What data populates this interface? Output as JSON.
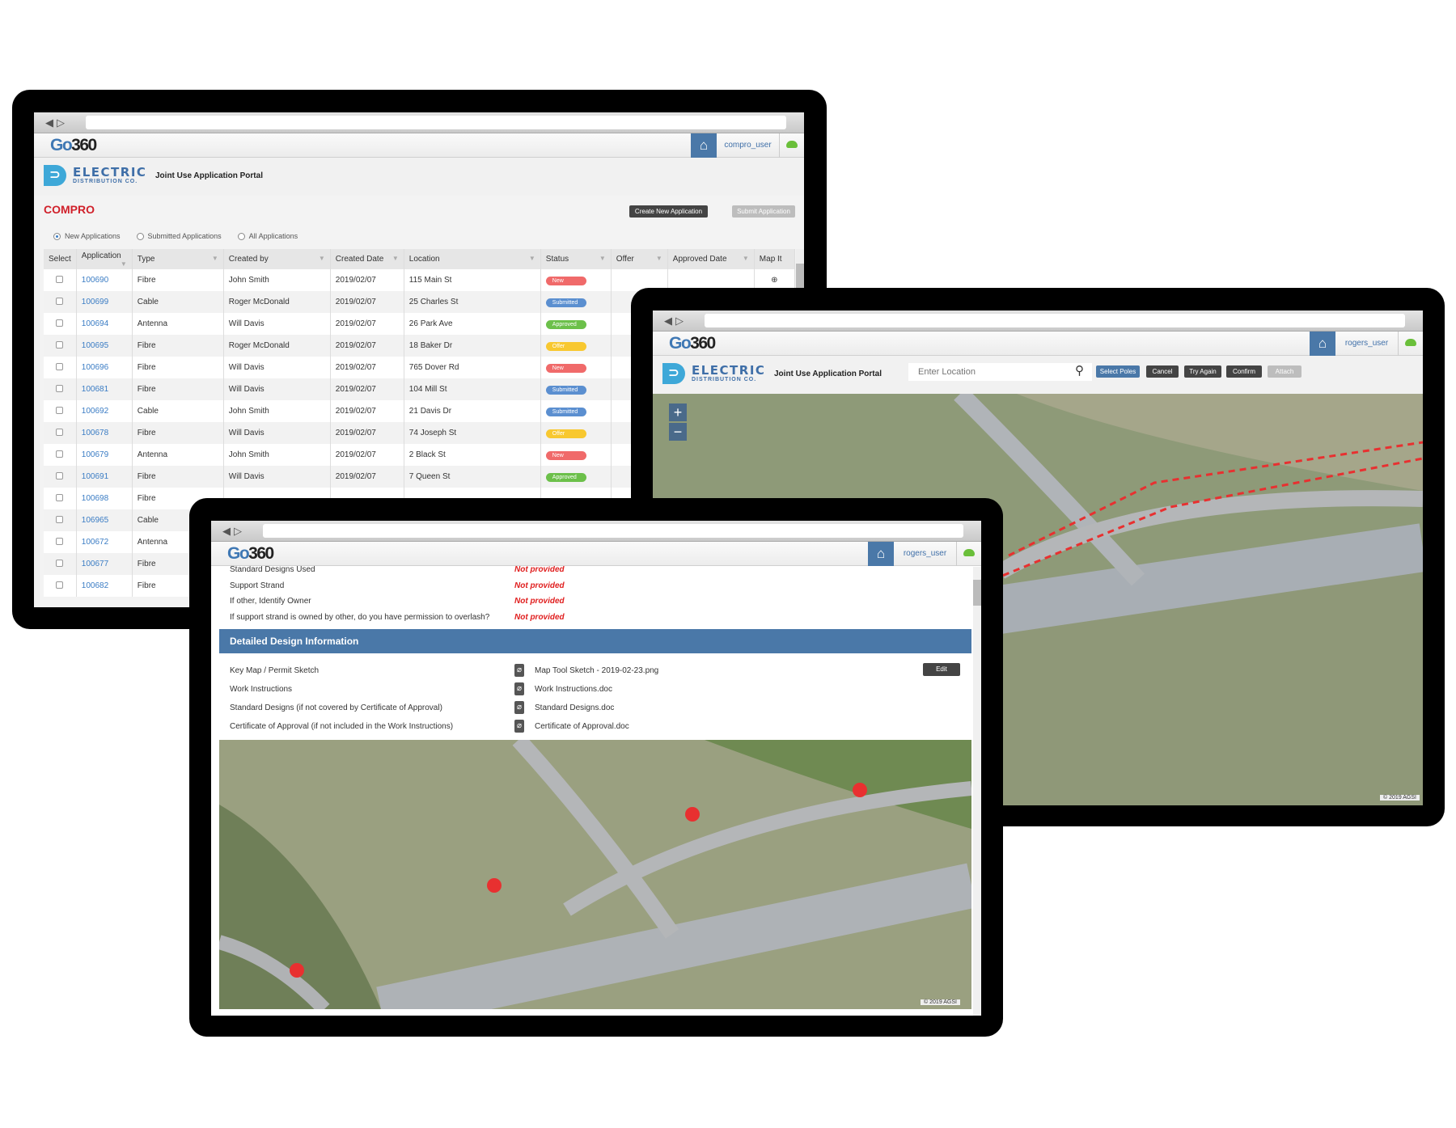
{
  "colors": {
    "brand_blue": "#4a78a8",
    "new": "#f06a6a",
    "submitted": "#5b8fd0",
    "approved": "#6cc04a",
    "offer": "#f8c830",
    "error_text": "#e02020"
  },
  "app": {
    "logo_go": "Go",
    "logo_360": "360",
    "company": "ELECTRIC",
    "company_sub": "DISTRIBUTION CO.",
    "portal_title": "Joint Use Application Portal"
  },
  "screen1": {
    "user": "compro_user",
    "compro_logo": "COMPRO",
    "create_button": "Create New Application",
    "submit_button": "Submit Application",
    "filters": [
      {
        "label": "New Applications",
        "selected": true
      },
      {
        "label": "Submitted Applications",
        "selected": false
      },
      {
        "label": "All Applications",
        "selected": false
      }
    ],
    "columns": [
      "Select",
      "Application",
      "Type",
      "Created by",
      "Created Date",
      "Location",
      "Status",
      "Offer",
      "Approved Date",
      "Map It"
    ],
    "rows": [
      {
        "id": "100690",
        "type": "Fibre",
        "by": "John Smith",
        "date": "2019/02/07",
        "loc": "115 Main St",
        "status": "New"
      },
      {
        "id": "100699",
        "type": "Cable",
        "by": "Roger McDonald",
        "date": "2019/02/07",
        "loc": "25 Charles St",
        "status": "Submitted"
      },
      {
        "id": "100694",
        "type": "Antenna",
        "by": "Will Davis",
        "date": "2019/02/07",
        "loc": "26 Park Ave",
        "status": "Approved"
      },
      {
        "id": "100695",
        "type": "Fibre",
        "by": "Roger McDonald",
        "date": "2019/02/07",
        "loc": "18 Baker Dr",
        "status": "Offer"
      },
      {
        "id": "100696",
        "type": "Fibre",
        "by": "Will Davis",
        "date": "2019/02/07",
        "loc": "765 Dover Rd",
        "status": "New"
      },
      {
        "id": "100681",
        "type": "Fibre",
        "by": "Will Davis",
        "date": "2019/02/07",
        "loc": "104 Mill St",
        "status": "Submitted"
      },
      {
        "id": "100692",
        "type": "Cable",
        "by": "John Smith",
        "date": "2019/02/07",
        "loc": "21 Davis Dr",
        "status": "Submitted"
      },
      {
        "id": "100678",
        "type": "Fibre",
        "by": "Will Davis",
        "date": "2019/02/07",
        "loc": "74 Joseph St",
        "status": "Offer"
      },
      {
        "id": "100679",
        "type": "Antenna",
        "by": "John Smith",
        "date": "2019/02/07",
        "loc": "2 Black St",
        "status": "New"
      },
      {
        "id": "100691",
        "type": "Fibre",
        "by": "Will Davis",
        "date": "2019/02/07",
        "loc": "7 Queen St",
        "status": "Approved"
      },
      {
        "id": "100698",
        "type": "Fibre"
      },
      {
        "id": "106965",
        "type": "Cable"
      },
      {
        "id": "100672",
        "type": "Antenna"
      },
      {
        "id": "100677",
        "type": "Fibre"
      },
      {
        "id": "100682",
        "type": "Fibre"
      }
    ]
  },
  "screen2": {
    "user": "rogers_user",
    "search_placeholder": "Enter Location",
    "buttons": [
      "Select Poles",
      "Cancel",
      "Try Again",
      "Confirm",
      "Attach"
    ],
    "zoom_in": "+",
    "zoom_out": "−",
    "copyright": "© 2019 AGSI"
  },
  "screen3": {
    "user": "rogers_user",
    "fields": [
      {
        "label": "Standard Designs Used",
        "value": "Not provided"
      },
      {
        "label": "Support Strand",
        "value": "Not provided"
      },
      {
        "label": "If other, Identify Owner",
        "value": "Not provided"
      },
      {
        "label": "If support strand is owned by other, do you have permission to overlash?",
        "value": "Not provided"
      }
    ],
    "section_title": "Detailed Design Information",
    "edit_button": "Edit",
    "attachments": [
      {
        "label": "Key Map / Permit Sketch",
        "file": "Map Tool Sketch - 2019-02-23.png"
      },
      {
        "label": "Work Instructions",
        "file": "Work Instructions.doc"
      },
      {
        "label": "Standard Designs (if not covered by Certificate of Approval)",
        "file": "Standard Designs.doc"
      },
      {
        "label": "Certificate of Approval (if not included in the Work Instructions)",
        "file": "Certificate of Approval.doc"
      }
    ],
    "copyright": "© 2019 AGSI"
  }
}
